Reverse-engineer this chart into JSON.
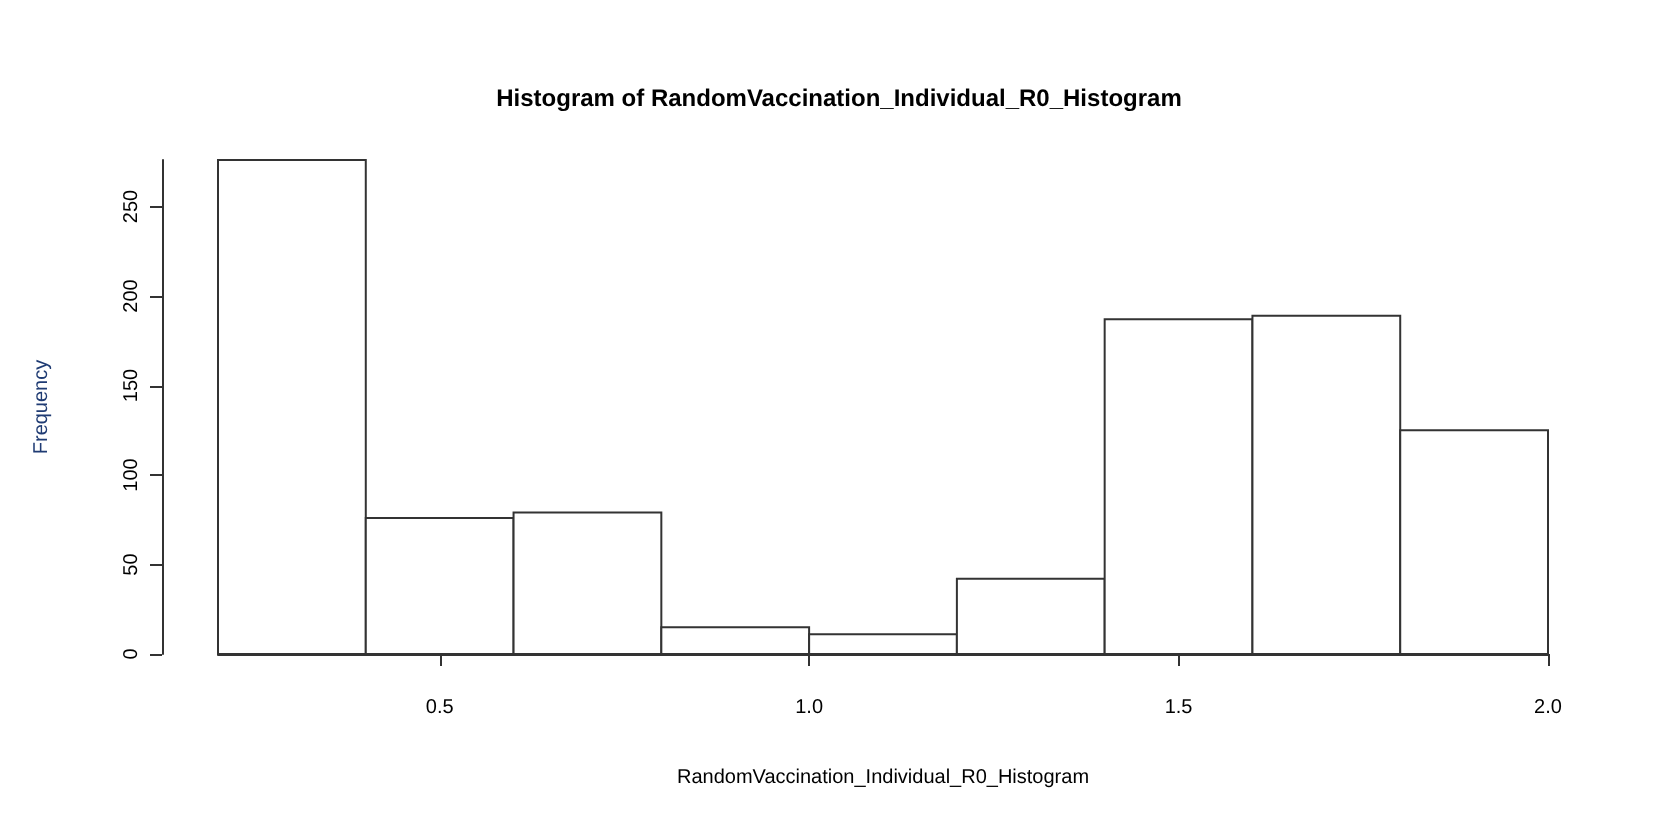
{
  "chart_data": {
    "type": "histogram",
    "title": "Histogram of RandomVaccination_Individual_R0_Histogram",
    "xlabel": "RandomVaccination_Individual_R0_Histogram",
    "ylabel": "Frequency",
    "bins": [
      0.2,
      0.4,
      0.6,
      0.8,
      1.0,
      1.2,
      1.4,
      1.6,
      1.8,
      2.0
    ],
    "values": [
      276,
      76,
      79,
      15,
      11,
      42,
      187,
      189,
      125
    ],
    "color": "#ffffff",
    "xlim": [
      0.2,
      2.0
    ],
    "xticks": [
      {
        "value": 0.5,
        "label": "0.5"
      },
      {
        "value": 1,
        "label": "1.0"
      },
      {
        "value": 1.5,
        "label": "1.5"
      },
      {
        "value": 2,
        "label": "2.0"
      }
    ],
    "ylim": [
      0,
      276
    ],
    "yticks": [
      0,
      50,
      100,
      150,
      200,
      250
    ],
    "grid": false
  }
}
